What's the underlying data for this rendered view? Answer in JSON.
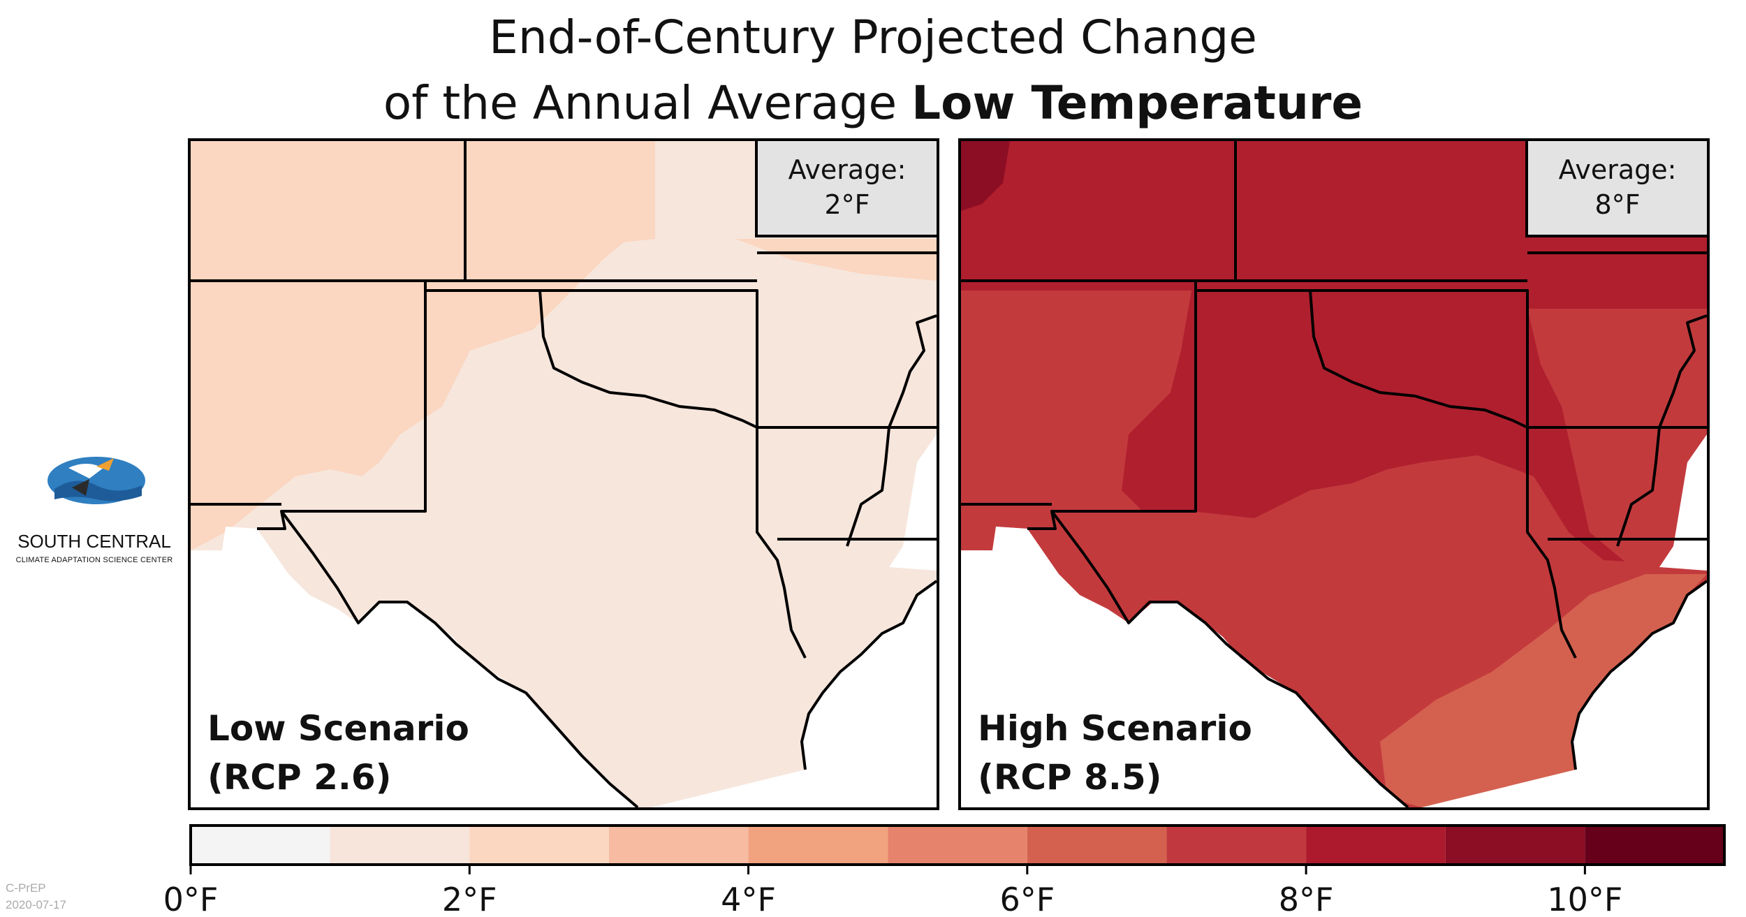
{
  "title": {
    "line1": "End-of-Century Projected Change",
    "line2_prefix": "of the Annual Average ",
    "line2_bold": "Low Temperature"
  },
  "panels": [
    {
      "name": "low",
      "average_label": "Average:",
      "average_value": "2°F",
      "scenario_line1": "Low Scenario",
      "scenario_line2": "(RCP 2.6)",
      "field_color": "#f7e6dc",
      "accent_color": "#fbd6c0"
    },
    {
      "name": "high",
      "average_label": "Average:",
      "average_value": "8°F",
      "scenario_line1": "High Scenario",
      "scenario_line2": "(RCP 8.5)",
      "field_color": "#b01f2e",
      "accent_color": "#c33a3d"
    }
  ],
  "colorbar": {
    "unit": "°F",
    "min": 0,
    "max": 11,
    "bins": [
      {
        "from": 0,
        "to": 1,
        "color": "#f4f4f4"
      },
      {
        "from": 1,
        "to": 2,
        "color": "#f7e4da"
      },
      {
        "from": 2,
        "to": 3,
        "color": "#fbd6c0"
      },
      {
        "from": 3,
        "to": 4,
        "color": "#f6bba0"
      },
      {
        "from": 4,
        "to": 5,
        "color": "#f1a27f"
      },
      {
        "from": 5,
        "to": 6,
        "color": "#e6836c"
      },
      {
        "from": 6,
        "to": 7,
        "color": "#d4614f"
      },
      {
        "from": 7,
        "to": 8,
        "color": "#c1393f"
      },
      {
        "from": 8,
        "to": 9,
        "color": "#ad1a2d"
      },
      {
        "from": 9,
        "to": 10,
        "color": "#8c0e24"
      },
      {
        "from": 10,
        "to": 11,
        "color": "#66001a"
      }
    ],
    "tick_labels": [
      "0°F",
      "2°F",
      "4°F",
      "6°F",
      "8°F",
      "10°F"
    ],
    "tick_values": [
      0,
      2,
      4,
      6,
      8,
      10
    ]
  },
  "logo": {
    "line1": "SOUTH CENTRAL",
    "line2": "CLIMATE ADAPTATION SCIENCE CENTER"
  },
  "credit": {
    "line1": "C-PrEP",
    "line2": "2020-07-17"
  }
}
